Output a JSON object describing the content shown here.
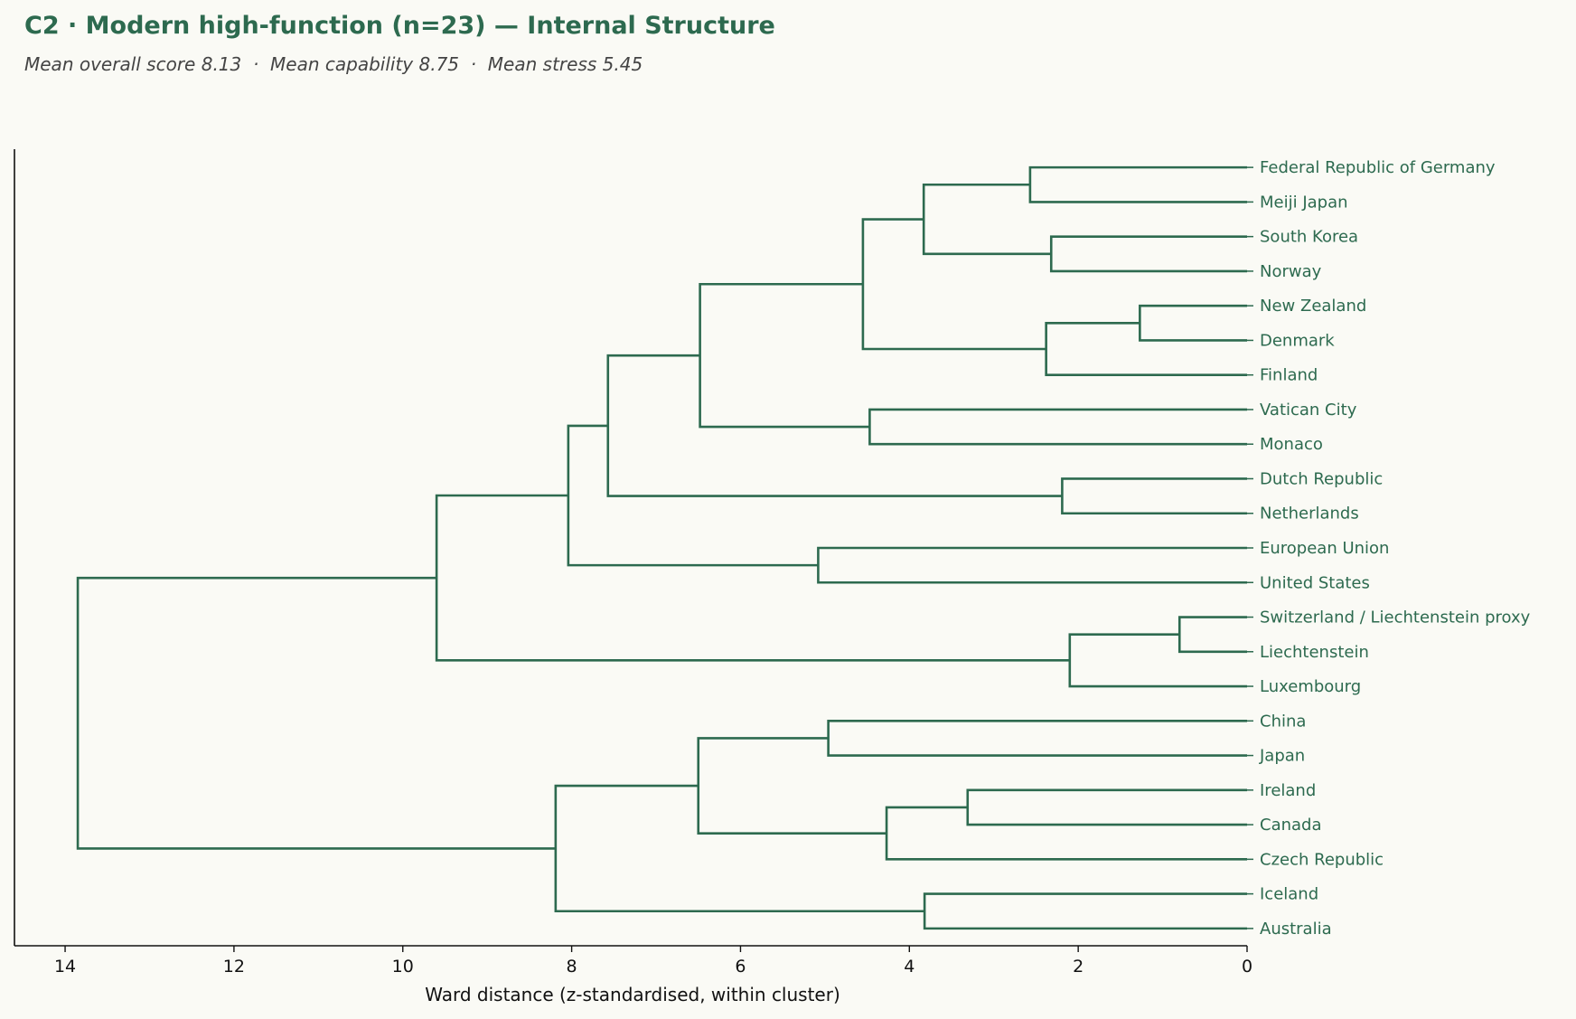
{
  "chart_data": {
    "type": "dendrogram",
    "title": "C2 · Modern high-function (n=23) — Internal Structure",
    "subtitle": "Mean overall score 8.13  ·  Mean capability 8.75  ·  Mean stress 5.45",
    "xlabel": "Ward distance (z-standardised, within cluster)",
    "xlim": [
      14.6,
      0
    ],
    "xticks": [
      14,
      12,
      10,
      8,
      6,
      4,
      2,
      0
    ],
    "orientation": "left",
    "color": "#2d6a4f",
    "leaves": [
      "Federal Republic of Germany",
      "Meiji Japan",
      "South Korea",
      "Norway",
      "New Zealand",
      "Denmark",
      "Finland",
      "Vatican City",
      "Monaco",
      "Dutch Republic",
      "Netherlands",
      "European Union",
      "United States",
      "Switzerland / Liechtenstein proxy",
      "Liechtenstein",
      "Luxembourg",
      "China",
      "Japan",
      "Ireland",
      "Canada",
      "Czech Republic",
      "Iceland",
      "Australia"
    ],
    "merges": [
      {
        "a": "L0",
        "b": "L1",
        "height": 2.57
      },
      {
        "a": "L2",
        "b": "L3",
        "height": 2.32
      },
      {
        "a": "M0",
        "b": "M1",
        "height": 3.83
      },
      {
        "a": "L4",
        "b": "L5",
        "height": 1.27
      },
      {
        "a": "M3",
        "b": "L6",
        "height": 2.38
      },
      {
        "a": "M2",
        "b": "M4",
        "height": 4.55
      },
      {
        "a": "L7",
        "b": "L8",
        "height": 4.47
      },
      {
        "a": "M5",
        "b": "M6",
        "height": 6.48
      },
      {
        "a": "L9",
        "b": "L10",
        "height": 2.19
      },
      {
        "a": "M7",
        "b": "M8",
        "height": 7.57
      },
      {
        "a": "L11",
        "b": "L12",
        "height": 5.08
      },
      {
        "a": "M9",
        "b": "M10",
        "height": 8.04
      },
      {
        "a": "L13",
        "b": "L14",
        "height": 0.8
      },
      {
        "a": "M12",
        "b": "L15",
        "height": 2.1
      },
      {
        "a": "M11",
        "b": "M13",
        "height": 9.6
      },
      {
        "a": "L16",
        "b": "L17",
        "height": 4.96
      },
      {
        "a": "L18",
        "b": "L19",
        "height": 3.31
      },
      {
        "a": "M16",
        "b": "L20",
        "height": 4.27
      },
      {
        "a": "M15",
        "b": "M17",
        "height": 6.5
      },
      {
        "a": "L21",
        "b": "L22",
        "height": 3.82
      },
      {
        "a": "M18",
        "b": "M19",
        "height": 8.19
      },
      {
        "a": "M14",
        "b": "M20",
        "height": 13.85
      }
    ]
  }
}
